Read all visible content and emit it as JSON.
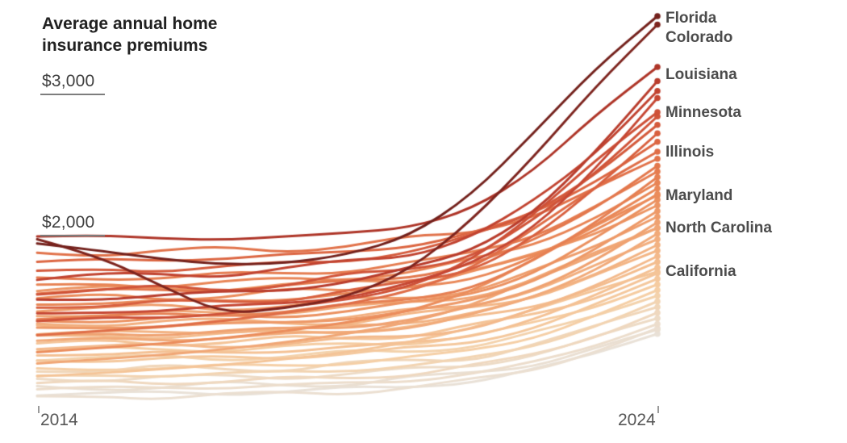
{
  "chart_data": {
    "type": "line",
    "title": "Average annual home insurance premiums",
    "x": [
      2014,
      2015,
      2016,
      2017,
      2018,
      2019,
      2020,
      2021,
      2022,
      2023,
      2024
    ],
    "x_axis": {
      "ticks": [
        {
          "label": "2014",
          "value": 2014
        },
        {
          "label": "2024",
          "value": 2024
        }
      ]
    },
    "y_axis": {
      "unit": "USD per year",
      "ticks": [
        {
          "label": "$2,000",
          "value": 2000
        },
        {
          "label": "$3,000",
          "value": 3000
        }
      ]
    },
    "legend_position": "right-of-line-endpoints",
    "grid": "tick-stubs-only",
    "color_scale": {
      "meaning": "darker red = higher 2024 premium",
      "domain": [
        1310,
        3560
      ],
      "stops": [
        {
          "t": 0.0,
          "color": "#e9e1d7"
        },
        {
          "t": 0.14,
          "color": "#f5cfa5"
        },
        {
          "t": 0.3,
          "color": "#f2ae7d"
        },
        {
          "t": 0.45,
          "color": "#ea8a59"
        },
        {
          "t": 0.6,
          "color": "#dd6743"
        },
        {
          "t": 0.74,
          "color": "#c74733"
        },
        {
          "t": 0.86,
          "color": "#a93126"
        },
        {
          "t": 1.0,
          "color": "#73211c"
        }
      ]
    },
    "series": [
      {
        "name": "Florida",
        "label": "Florida",
        "label_dy": 2,
        "values": [
          1950,
          1900,
          1840,
          1800,
          1810,
          1870,
          2000,
          2290,
          2730,
          3190,
          3560
        ]
      },
      {
        "name": "Colorado",
        "label": "Colorado",
        "label_dy": 16,
        "values": [
          1980,
          1860,
          1650,
          1450,
          1490,
          1570,
          1760,
          2110,
          2560,
          3060,
          3500
        ]
      },
      {
        "name": "Louisiana",
        "label": "Louisiana",
        "label_dy": 9,
        "values": [
          2000,
          2010,
          1985,
          1975,
          2000,
          2025,
          2060,
          2190,
          2460,
          2860,
          3200
        ]
      },
      {
        "name": "Minnesota",
        "label": "Minnesota",
        "label_dy": 0,
        "values": [
          1400,
          1430,
          1420,
          1450,
          1500,
          1550,
          1640,
          1830,
          2150,
          2540,
          2880
        ]
      },
      {
        "name": "Illinois",
        "label": "Illinois",
        "label_dy": 0,
        "values": [
          1300,
          1330,
          1360,
          1400,
          1460,
          1520,
          1610,
          1770,
          2050,
          2350,
          2600
        ]
      },
      {
        "name": "Maryland",
        "label": "Maryland",
        "label_dy": 0,
        "values": [
          1180,
          1210,
          1240,
          1280,
          1330,
          1390,
          1470,
          1610,
          1830,
          2080,
          2290
        ]
      },
      {
        "name": "North Carolina",
        "label": "North Carolina",
        "label_dy": 0,
        "values": [
          1100,
          1130,
          1160,
          1200,
          1250,
          1310,
          1390,
          1510,
          1700,
          1890,
          2060
        ]
      },
      {
        "name": "California",
        "label": "California",
        "label_dy": 0,
        "values": [
          1010,
          1030,
          1060,
          1090,
          1130,
          1180,
          1250,
          1350,
          1480,
          1620,
          1750
        ]
      }
    ],
    "growth_profile": [
      0,
      0.012,
      0.02,
      0.03,
      0.05,
      0.085,
      0.135,
      0.225,
      0.4,
      0.67,
      1.0
    ],
    "background_series": [
      {
        "start": 1550,
        "end": 3100,
        "seed": 1,
        "amp": 22
      },
      {
        "start": 1700,
        "end": 3030,
        "seed": 2,
        "amp": 34
      },
      {
        "start": 1450,
        "end": 2980,
        "seed": 3,
        "amp": 18
      },
      {
        "start": 1600,
        "end": 2850,
        "seed": 4,
        "amp": 40
      },
      {
        "start": 1750,
        "end": 2790,
        "seed": 5,
        "amp": 27
      },
      {
        "start": 1500,
        "end": 2730,
        "seed": 6,
        "amp": 31
      },
      {
        "start": 1820,
        "end": 2670,
        "seed": 7,
        "amp": 16
      },
      {
        "start": 1880,
        "end": 2550,
        "seed": 8,
        "amp": 38
      },
      {
        "start": 1600,
        "end": 2500,
        "seed": 9,
        "amp": 24
      },
      {
        "start": 1700,
        "end": 2460,
        "seed": 10,
        "amp": 29
      },
      {
        "start": 1420,
        "end": 2420,
        "seed": 11,
        "amp": 22
      },
      {
        "start": 1650,
        "end": 2380,
        "seed": 12,
        "amp": 34
      },
      {
        "start": 1520,
        "end": 2340,
        "seed": 13,
        "amp": 18
      },
      {
        "start": 1560,
        "end": 2300,
        "seed": 14,
        "amp": 40
      },
      {
        "start": 1400,
        "end": 2260,
        "seed": 15,
        "amp": 27
      },
      {
        "start": 1620,
        "end": 2220,
        "seed": 16,
        "amp": 31
      },
      {
        "start": 1350,
        "end": 2180,
        "seed": 17,
        "amp": 16
      },
      {
        "start": 1480,
        "end": 2140,
        "seed": 18,
        "amp": 38
      },
      {
        "start": 1300,
        "end": 2100,
        "seed": 19,
        "amp": 24
      },
      {
        "start": 1440,
        "end": 2060,
        "seed": 20,
        "amp": 29
      },
      {
        "start": 1260,
        "end": 2020,
        "seed": 21,
        "amp": 22
      },
      {
        "start": 1380,
        "end": 1980,
        "seed": 22,
        "amp": 34
      },
      {
        "start": 1310,
        "end": 1940,
        "seed": 23,
        "amp": 18
      },
      {
        "start": 1360,
        "end": 1900,
        "seed": 24,
        "amp": 40
      },
      {
        "start": 1210,
        "end": 1860,
        "seed": 25,
        "amp": 27
      },
      {
        "start": 1290,
        "end": 1820,
        "seed": 26,
        "amp": 31
      },
      {
        "start": 1160,
        "end": 1780,
        "seed": 27,
        "amp": 16
      },
      {
        "start": 1240,
        "end": 1740,
        "seed": 28,
        "amp": 38
      },
      {
        "start": 1120,
        "end": 1700,
        "seed": 29,
        "amp": 24
      },
      {
        "start": 1190,
        "end": 1660,
        "seed": 30,
        "amp": 29
      },
      {
        "start": 1060,
        "end": 1620,
        "seed": 31,
        "amp": 22
      },
      {
        "start": 1130,
        "end": 1580,
        "seed": 32,
        "amp": 34
      },
      {
        "start": 1010,
        "end": 1540,
        "seed": 33,
        "amp": 18
      },
      {
        "start": 1050,
        "end": 1500,
        "seed": 34,
        "amp": 40
      },
      {
        "start": 960,
        "end": 1460,
        "seed": 35,
        "amp": 27
      },
      {
        "start": 990,
        "end": 1420,
        "seed": 36,
        "amp": 31
      },
      {
        "start": 920,
        "end": 1380,
        "seed": 37,
        "amp": 16
      },
      {
        "start": 930,
        "end": 1340,
        "seed": 38,
        "amp": 38
      },
      {
        "start": 880,
        "end": 1310,
        "seed": 39,
        "amp": 24
      },
      {
        "start": 860,
        "end": 1350,
        "seed": 40,
        "amp": 29
      }
    ]
  }
}
